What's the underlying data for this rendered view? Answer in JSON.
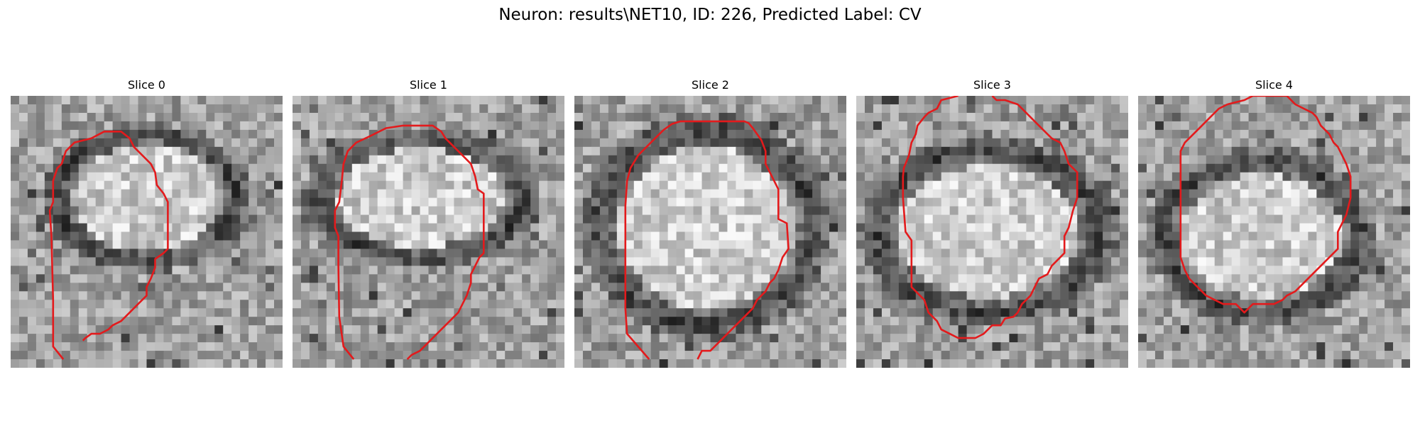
{
  "figure": {
    "title": "Neuron: results\\NET10, ID: 226, Predicted Label: CV"
  },
  "colors": {
    "contour": "#e31a1c",
    "background": "#ffffff"
  },
  "panels": [
    {
      "title": "Slice 0"
    },
    {
      "title": "Slice 1"
    },
    {
      "title": "Slice 2"
    },
    {
      "title": "Slice 3"
    },
    {
      "title": "Slice 4"
    }
  ]
}
